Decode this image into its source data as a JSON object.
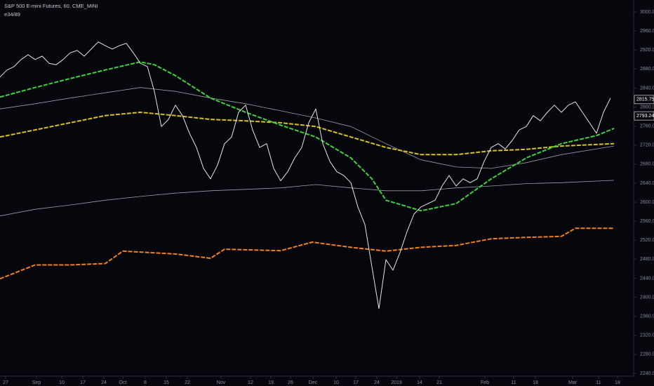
{
  "chart_data": {
    "type": "line",
    "title": "S&P 500 E-mini Futures, 60, CME_MINI",
    "subtitle": "e34/89",
    "xlim": [
      0,
      180
    ],
    "ylim": [
      2240,
      3000
    ],
    "xticks": [
      {
        "value": 1.6,
        "label": "27"
      },
      {
        "value": 10.4,
        "label": "Sep"
      },
      {
        "value": 17.6,
        "label": "10"
      },
      {
        "value": 23.6,
        "label": "17"
      },
      {
        "value": 29.6,
        "label": "24"
      },
      {
        "value": 35,
        "label": "Oct"
      },
      {
        "value": 41.4,
        "label": "8"
      },
      {
        "value": 47.4,
        "label": "15"
      },
      {
        "value": 53.4,
        "label": "22"
      },
      {
        "value": 63,
        "label": "Nov"
      },
      {
        "value": 71.4,
        "label": "12"
      },
      {
        "value": 77.2,
        "label": "19"
      },
      {
        "value": 82.8,
        "label": "26"
      },
      {
        "value": 89.2,
        "label": "Dec"
      },
      {
        "value": 95.8,
        "label": "10"
      },
      {
        "value": 101.4,
        "label": "17"
      },
      {
        "value": 107.4,
        "label": "24"
      },
      {
        "value": 113,
        "label": "2019"
      },
      {
        "value": 119.6,
        "label": "14"
      },
      {
        "value": 125.2,
        "label": "21"
      },
      {
        "value": 138.2,
        "label": "Feb"
      },
      {
        "value": 146.4,
        "label": "11"
      },
      {
        "value": 152.6,
        "label": "18"
      },
      {
        "value": 163.2,
        "label": "Mar"
      },
      {
        "value": 170.6,
        "label": "11"
      },
      {
        "value": 176,
        "label": "18"
      }
    ],
    "yticks": [
      {
        "value": 3000,
        "label": "3000.00"
      },
      {
        "value": 2960,
        "label": "2960.00"
      },
      {
        "value": 2920,
        "label": "2920.00"
      },
      {
        "value": 2880,
        "label": "2880.00"
      },
      {
        "value": 2840,
        "label": "2840.00"
      },
      {
        "value": 2800,
        "label": "2800.00"
      },
      {
        "value": 2760,
        "label": "2760.00"
      },
      {
        "value": 2720,
        "label": "2720.00"
      },
      {
        "value": 2680,
        "label": "2680.00"
      },
      {
        "value": 2640,
        "label": "2640.00"
      },
      {
        "value": 2600,
        "label": "2600.00"
      },
      {
        "value": 2560,
        "label": "2560.00"
      },
      {
        "value": 2520,
        "label": "2520.00"
      },
      {
        "value": 2480,
        "label": "2480.00"
      },
      {
        "value": 2440,
        "label": "2440.00"
      },
      {
        "value": 2400,
        "label": "2400.00"
      },
      {
        "value": 2360,
        "label": "2360.00"
      },
      {
        "value": 2320,
        "label": "2320.00"
      },
      {
        "value": 2280,
        "label": "2280.00"
      },
      {
        "value": 2240,
        "label": "2240.00"
      }
    ],
    "price_labels": [
      {
        "value": 2815.75,
        "label": "2815.75",
        "color": "#ffffff"
      },
      {
        "value": 2793.24,
        "label": "2793.24",
        "color": "#ffffff"
      }
    ],
    "series": [
      {
        "color": "#e6e6e6",
        "width": 1,
        "x": [
          0,
          2,
          4,
          6,
          8,
          10,
          12,
          14,
          16,
          18,
          20,
          22,
          24,
          26,
          28,
          30,
          32,
          34,
          36,
          38,
          40,
          42,
          44,
          46,
          48,
          50,
          52,
          54,
          56,
          58,
          60,
          62,
          64,
          66,
          68,
          70,
          72,
          74,
          76,
          78,
          80,
          82,
          84,
          86,
          88,
          90,
          92,
          94,
          96,
          98,
          100,
          102,
          104,
          106,
          108,
          110,
          112,
          114,
          116,
          118,
          120,
          122,
          124,
          126,
          128,
          130,
          132,
          134,
          136,
          138,
          140,
          142,
          144,
          146,
          148,
          150,
          152,
          154,
          156,
          158,
          160,
          162,
          164,
          166,
          168,
          170,
          172,
          174
        ],
        "values": [
          2863,
          2878,
          2885,
          2900,
          2910,
          2900,
          2907,
          2892,
          2889,
          2900,
          2914,
          2919,
          2907,
          2922,
          2937,
          2929,
          2922,
          2929,
          2934,
          2914,
          2892,
          2885,
          2833,
          2759,
          2774,
          2804,
          2782,
          2745,
          2715,
          2671,
          2649,
          2678,
          2723,
          2737,
          2789,
          2804,
          2752,
          2715,
          2723,
          2671,
          2645,
          2664,
          2693,
          2715,
          2767,
          2796,
          2723,
          2686,
          2664,
          2656,
          2641,
          2590,
          2553,
          2464,
          2376,
          2479,
          2457,
          2494,
          2538,
          2575,
          2590,
          2597,
          2604,
          2634,
          2656,
          2634,
          2649,
          2641,
          2649,
          2686,
          2715,
          2723,
          2712,
          2730,
          2752,
          2759,
          2782,
          2771,
          2789,
          2804,
          2789,
          2804,
          2811,
          2789,
          2767,
          2745,
          2789,
          2819
        ]
      },
      {
        "color": "#3fd23c",
        "width": 2,
        "dash": true,
        "x": [
          0,
          10,
          20,
          30,
          40,
          44,
          50,
          60,
          70,
          80,
          90,
          100,
          106,
          110,
          120,
          130,
          140,
          150,
          160,
          170,
          175
        ],
        "values": [
          2821,
          2841,
          2860,
          2878,
          2895,
          2889,
          2866,
          2819,
          2789,
          2762,
          2737,
          2693,
          2649,
          2604,
          2582,
          2597,
          2649,
          2693,
          2723,
          2740,
          2755
        ]
      },
      {
        "color": "#d8c21a",
        "width": 2,
        "dash": true,
        "x": [
          0,
          10,
          20,
          30,
          40,
          50,
          60,
          70,
          80,
          90,
          100,
          110,
          120,
          130,
          140,
          150,
          160,
          175
        ],
        "values": [
          2737,
          2752,
          2767,
          2782,
          2789,
          2782,
          2774,
          2771,
          2767,
          2759,
          2737,
          2715,
          2700,
          2700,
          2708,
          2711,
          2718,
          2723
        ]
      },
      {
        "color": "#9a9ca3",
        "width": 0.8,
        "x": [
          0,
          10,
          20,
          30,
          40,
          50,
          60,
          70,
          80,
          90,
          100,
          110,
          120,
          130,
          140,
          150,
          160,
          175
        ],
        "values": [
          2796,
          2807,
          2819,
          2830,
          2841,
          2833,
          2819,
          2807,
          2792,
          2777,
          2759,
          2723,
          2689,
          2674,
          2671,
          2683,
          2700,
          2718
        ]
      },
      {
        "color": "#9a9ca3",
        "width": 0.8,
        "x": [
          0,
          10,
          20,
          30,
          40,
          50,
          60,
          70,
          80,
          90,
          100,
          110,
          120,
          130,
          140,
          150,
          160,
          175
        ],
        "values": [
          2571,
          2585,
          2594,
          2604,
          2612,
          2619,
          2624,
          2627,
          2630,
          2637,
          2630,
          2624,
          2624,
          2630,
          2634,
          2639,
          2641,
          2646
        ]
      },
      {
        "color": "#f0821e",
        "width": 2,
        "dash": true,
        "x": [
          0,
          10,
          20,
          30,
          35,
          50,
          60,
          64,
          80,
          89,
          100,
          110,
          120,
          130,
          140,
          150,
          160,
          164,
          175
        ],
        "values": [
          2439,
          2468,
          2468,
          2471,
          2497,
          2491,
          2482,
          2501,
          2498,
          2516,
          2505,
          2497,
          2505,
          2509,
          2523,
          2526,
          2528,
          2545,
          2545
        ]
      }
    ]
  }
}
